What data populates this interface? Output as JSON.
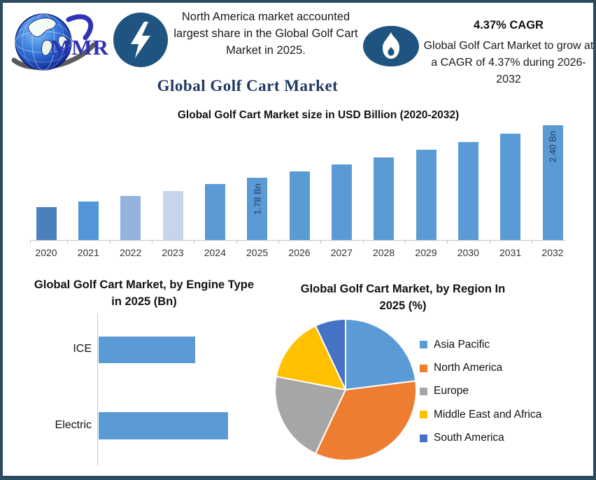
{
  "colors": {
    "border": "#2B4B60",
    "badge_blue": "#1F5480",
    "title_navy": "#1F3864",
    "logo_text_blue": "#2E32B4",
    "bar_blue": "#5B9BD5"
  },
  "header": {
    "logo_text": "MMR",
    "left_callout": "North America market accounted largest share in the Global Golf Cart Market in 2025.",
    "cagr_headline": "4.37% CAGR",
    "right_callout": "Global Golf Cart Market to grow at a CAGR of 4.37% during 2026-2032"
  },
  "main_title": "Global Golf Cart Market",
  "chart_data": [
    {
      "type": "bar",
      "title": "Global Golf Cart Market size in USD Billion (2020-2032)",
      "categories": [
        "2020",
        "2021",
        "2022",
        "2023",
        "2024",
        "2025",
        "2026",
        "2027",
        "2028",
        "2029",
        "2030",
        "2031",
        "2032"
      ],
      "values": [
        1.44,
        1.5,
        1.57,
        1.63,
        1.71,
        1.78,
        1.86,
        1.94,
        2.02,
        2.11,
        2.2,
        2.3,
        2.4
      ],
      "unit": "USD Billion",
      "data_labels": [
        "",
        "",
        "",
        "",
        "",
        "1.78 Bn",
        "",
        "",
        "",
        "",
        "",
        "",
        "2.40 Bn"
      ],
      "bar_colors": [
        "#4A80BC",
        "#5295D9",
        "#94B3DC",
        "#C6D5EC",
        "#5B9BD5",
        "#5B9BD5",
        "#5B9BD5",
        "#5B9BD5",
        "#5B9BD5",
        "#5B9BD5",
        "#5B9BD5",
        "#5B9BD5",
        "#5B9BD5"
      ],
      "ylim": [
        1.05,
        2.4
      ],
      "axis_truncated": true,
      "grid": false,
      "xlabel": "",
      "ylabel": ""
    },
    {
      "type": "bar",
      "orientation": "horizontal",
      "title": "Global Golf Cart Market, by Engine Type in 2025 (Bn)",
      "categories": [
        "ICE",
        "Electric"
      ],
      "values": [
        0.76,
        1.02
      ],
      "unit": "USD Billion",
      "xlim": [
        0,
        1.15
      ],
      "bar_color": "#5B9BD5",
      "grid": false
    },
    {
      "type": "pie",
      "title": "Global Golf Cart Market, by Region In 2025 (%)",
      "labels": [
        "Asia Pacific",
        "North America",
        "Europe",
        "Middle East and Africa",
        "South America"
      ],
      "values": [
        23,
        34,
        21,
        15,
        7
      ],
      "colors": [
        "#5B9BD5",
        "#ED7D31",
        "#A6A6A6",
        "#FFC000",
        "#4472C4"
      ],
      "legend_position": "right",
      "start_angle_deg": 0,
      "clockwise": true
    }
  ]
}
